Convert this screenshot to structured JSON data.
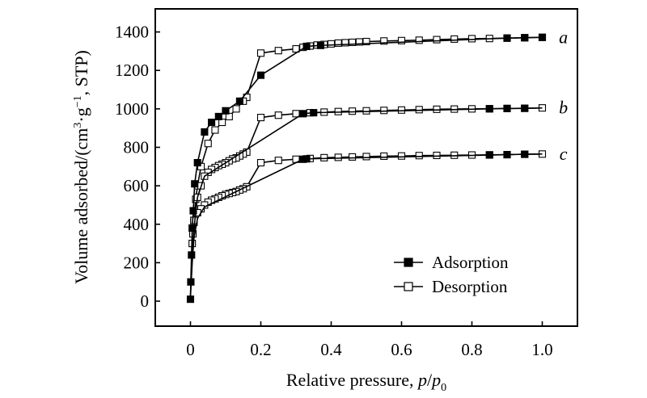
{
  "chart_data": {
    "type": "line",
    "xlabel": "Relative pressure, p/p0",
    "xlabel_parts": {
      "prefix": "Relative pressure, ",
      "p": "p",
      "slash": "/",
      "p0": "p",
      "p0_sub": "0"
    },
    "ylabel": "Volume adsorbed/(cm³·g⁻¹, STP)",
    "ylabel_parts": {
      "pre": "Volume adsorbed/(cm",
      "sup3": "3",
      "mid": "·g",
      "supm1": "−1",
      "post": ", STP)"
    },
    "xlim": [
      -0.1,
      1.1
    ],
    "ylim": [
      -130,
      1520
    ],
    "xticks": [
      0.0,
      0.2,
      0.4,
      0.6,
      0.8,
      1.0
    ],
    "xtick_labels": [
      "0",
      "0.2",
      "0.4",
      "0.6",
      "0.8",
      "1.0"
    ],
    "yticks": [
      0,
      200,
      400,
      600,
      800,
      1000,
      1200,
      1400
    ],
    "ytick_labels": [
      "0",
      "200",
      "400",
      "600",
      "800",
      "1000",
      "1200",
      "1400"
    ],
    "grid": false,
    "legend": {
      "position": "bottom-right",
      "entries": [
        {
          "name": "Adsorption",
          "marker": "filled-square"
        },
        {
          "name": "Desorption",
          "marker": "open-square"
        }
      ]
    },
    "series": [
      {
        "name": "a-adsorption",
        "sample": "a",
        "kind": "Adsorption",
        "x": [
          0.0,
          0.001,
          0.003,
          0.005,
          0.008,
          0.012,
          0.02,
          0.04,
          0.06,
          0.08,
          0.1,
          0.14,
          0.2,
          0.33,
          0.37,
          0.9,
          0.95,
          1.0
        ],
        "y": [
          10,
          100,
          240,
          380,
          470,
          610,
          720,
          880,
          930,
          960,
          990,
          1040,
          1175,
          1325,
          1330,
          1368,
          1370,
          1372
        ]
      },
      {
        "name": "a-desorption",
        "sample": "a",
        "kind": "Desorption",
        "x": [
          1.0,
          0.95,
          0.9,
          0.85,
          0.8,
          0.75,
          0.7,
          0.65,
          0.6,
          0.55,
          0.5,
          0.48,
          0.46,
          0.44,
          0.42,
          0.4,
          0.38,
          0.36,
          0.34,
          0.32,
          0.3,
          0.25,
          0.2,
          0.16,
          0.15,
          0.13,
          0.11,
          0.09,
          0.07,
          0.05,
          0.03,
          0.02,
          0.015,
          0.01,
          0.007,
          0.005
        ],
        "y": [
          1372,
          1370,
          1368,
          1366,
          1365,
          1363,
          1360,
          1357,
          1355,
          1353,
          1350,
          1348,
          1346,
          1344,
          1342,
          1338,
          1335,
          1332,
          1327,
          1320,
          1312,
          1303,
          1290,
          1060,
          1040,
          1000,
          960,
          930,
          890,
          820,
          700,
          600,
          530,
          420,
          350,
          300
        ]
      },
      {
        "name": "b-adsorption",
        "sample": "b",
        "kind": "Adsorption",
        "x": [
          0.0,
          0.001,
          0.003,
          0.005,
          0.01,
          0.02,
          0.04,
          0.32,
          0.35,
          0.85,
          0.9,
          0.95,
          1.0
        ],
        "y": [
          20,
          80,
          180,
          250,
          380,
          540,
          650,
          975,
          980,
          1000,
          1002,
          1003,
          1005
        ],
        "markers_at": [
          0.32,
          0.35,
          0.85,
          0.9,
          0.95
        ]
      },
      {
        "name": "b-desorption",
        "sample": "b",
        "kind": "Desorption",
        "x": [
          1.0,
          0.95,
          0.9,
          0.85,
          0.8,
          0.75,
          0.7,
          0.65,
          0.6,
          0.55,
          0.5,
          0.46,
          0.42,
          0.38,
          0.34,
          0.3,
          0.25,
          0.2,
          0.16,
          0.15,
          0.14,
          0.13,
          0.12,
          0.11,
          0.1,
          0.09,
          0.08,
          0.07,
          0.06,
          0.05,
          0.04,
          0.03,
          0.02,
          0.01
        ],
        "y": [
          1005,
          1003,
          1002,
          1001,
          1000,
          999,
          998,
          996,
          994,
          992,
          990,
          988,
          986,
          983,
          980,
          975,
          967,
          955,
          775,
          765,
          755,
          745,
          740,
          730,
          720,
          712,
          705,
          695,
          685,
          670,
          650,
          600,
          540,
          410
        ]
      },
      {
        "name": "c-adsorption",
        "sample": "c",
        "kind": "Adsorption",
        "x": [
          0.0,
          0.001,
          0.003,
          0.005,
          0.01,
          0.02,
          0.04,
          0.32,
          0.33,
          0.85,
          0.9,
          0.95,
          1.0
        ],
        "y": [
          15,
          60,
          130,
          200,
          330,
          430,
          490,
          738,
          740,
          760,
          762,
          764,
          765
        ],
        "markers_at": [
          0.32,
          0.33,
          0.85,
          0.9,
          0.95
        ]
      },
      {
        "name": "c-desorption",
        "sample": "c",
        "kind": "Desorption",
        "x": [
          1.0,
          0.95,
          0.9,
          0.85,
          0.8,
          0.75,
          0.7,
          0.65,
          0.6,
          0.55,
          0.5,
          0.46,
          0.42,
          0.38,
          0.34,
          0.3,
          0.25,
          0.2,
          0.16,
          0.15,
          0.14,
          0.13,
          0.12,
          0.11,
          0.1,
          0.09,
          0.08,
          0.07,
          0.06,
          0.05,
          0.04,
          0.03,
          0.02,
          0.01
        ],
        "y": [
          765,
          764,
          762,
          761,
          760,
          759,
          758,
          757,
          755,
          754,
          752,
          750,
          748,
          746,
          742,
          738,
          732,
          720,
          595,
          585,
          578,
          570,
          565,
          560,
          555,
          548,
          540,
          532,
          525,
          515,
          500,
          480,
          460,
          420
        ]
      }
    ],
    "series_labels": [
      {
        "text": "a",
        "x": 1.06,
        "y": 1372
      },
      {
        "text": "b",
        "x": 1.06,
        "y": 1005
      },
      {
        "text": "c",
        "x": 1.06,
        "y": 765
      }
    ]
  }
}
